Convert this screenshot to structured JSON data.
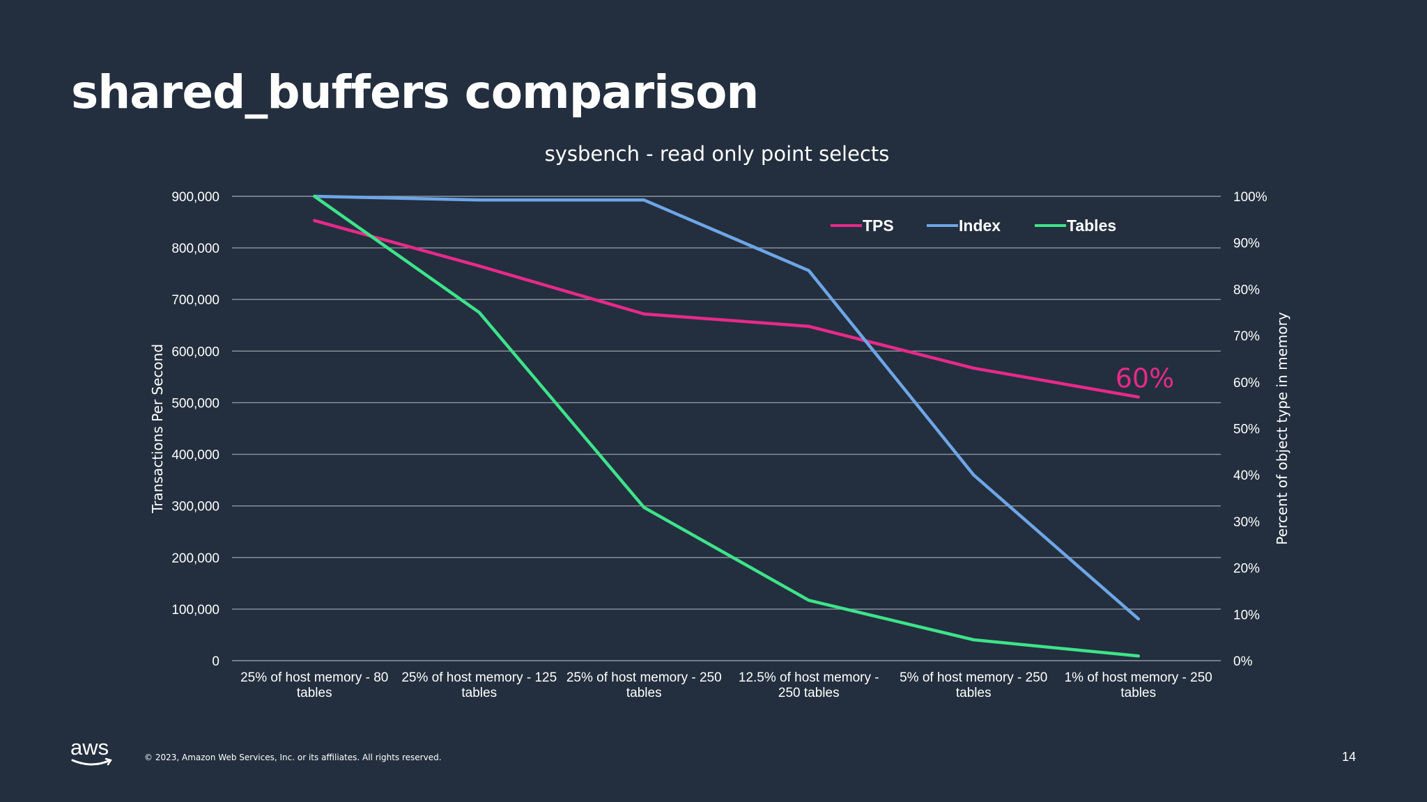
{
  "slide": {
    "title": "shared_buffers comparison",
    "copyright": "© 2023, Amazon Web Services, Inc. or its affiliates. All rights reserved.",
    "page_number": "14",
    "logo_text": "aws"
  },
  "colors": {
    "background": "#232f3e",
    "gridline": "#8f97a3",
    "text": "#ffffff",
    "tps": "#e7298a",
    "index": "#6ea6e7",
    "tables": "#3ee38a"
  },
  "chart_data": {
    "type": "line",
    "title": "sysbench - read only point selects",
    "categories": [
      [
        "25% of host memory - 80",
        "tables"
      ],
      [
        "25% of host memory - 125",
        "tables"
      ],
      [
        "25% of host memory - 250",
        "tables"
      ],
      [
        "12.5% of host memory -",
        "250 tables"
      ],
      [
        "5% of host memory  - 250",
        "tables"
      ],
      [
        "1% of host memory - 250",
        "tables"
      ]
    ],
    "y_left": {
      "label": "Transactions Per Second",
      "min": 0,
      "max": 900000,
      "step": 100000,
      "ticks": [
        "0",
        "100,000",
        "200,000",
        "300,000",
        "400,000",
        "500,000",
        "600,000",
        "700,000",
        "800,000",
        "900,000"
      ]
    },
    "y_right": {
      "label": "Percent of object type in memory",
      "min": 0,
      "max": 100,
      "step": 10,
      "ticks": [
        "0%",
        "10%",
        "20%",
        "30%",
        "40%",
        "50%",
        "60%",
        "70%",
        "80%",
        "90%",
        "100%"
      ]
    },
    "grid": true,
    "legend_position": "top-right",
    "series": [
      {
        "name": "TPS",
        "axis": "left",
        "color": "#e7298a",
        "values": [
          853000,
          765000,
          672000,
          648000,
          567000,
          511000
        ]
      },
      {
        "name": "Index",
        "axis": "right",
        "color": "#6ea6e7",
        "values": [
          100,
          99.2,
          99.2,
          84,
          40,
          9
        ]
      },
      {
        "name": "Tables",
        "axis": "right",
        "color": "#3ee38a",
        "values": [
          100,
          75,
          33,
          13,
          4.5,
          1
        ]
      }
    ],
    "annotations": [
      {
        "text": "60%",
        "series": "TPS",
        "category_index": 5,
        "color": "#e7298a"
      }
    ]
  }
}
